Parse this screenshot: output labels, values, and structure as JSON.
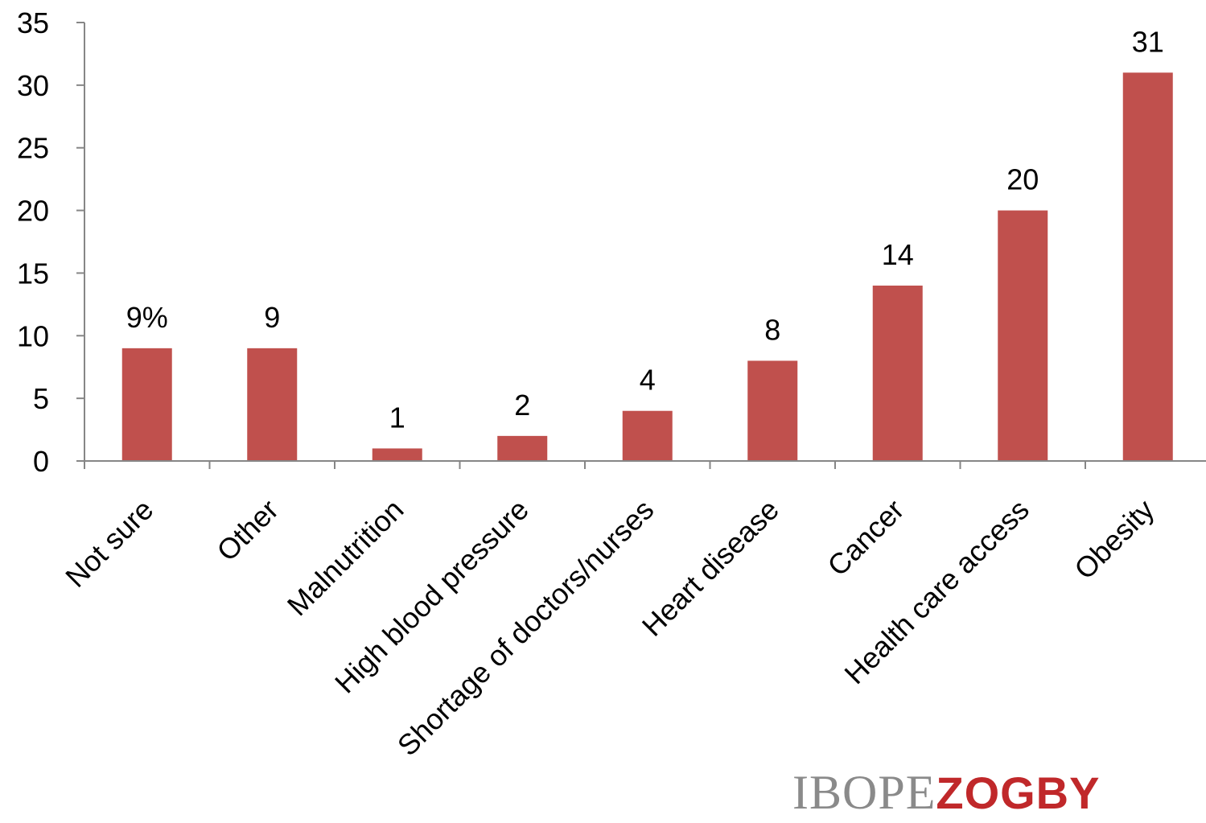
{
  "chart_data": {
    "type": "bar",
    "categories": [
      "Not sure",
      "Other",
      "Malnutrition",
      "High blood pressure",
      "Shortage of doctors/nurses",
      "Heart disease",
      "Cancer",
      "Health care access",
      "Obesity"
    ],
    "values": [
      9,
      9,
      1,
      2,
      4,
      8,
      14,
      20,
      31
    ],
    "data_labels": [
      "9%",
      "9",
      "1",
      "2",
      "4",
      "8",
      "14",
      "20",
      "31"
    ],
    "yticks": [
      "0",
      "5",
      "10",
      "15",
      "20",
      "25",
      "30",
      "35"
    ],
    "ylim": [
      0,
      35
    ],
    "title": "",
    "xlabel": "",
    "ylabel": "",
    "grid": false,
    "bar_color": "#c0504d"
  },
  "branding": {
    "logo_part1": "IBOPE",
    "logo_part2": "ZOGBY",
    "logo_part1_color": "#8a8a8a",
    "logo_part2_color": "#c0282a"
  }
}
